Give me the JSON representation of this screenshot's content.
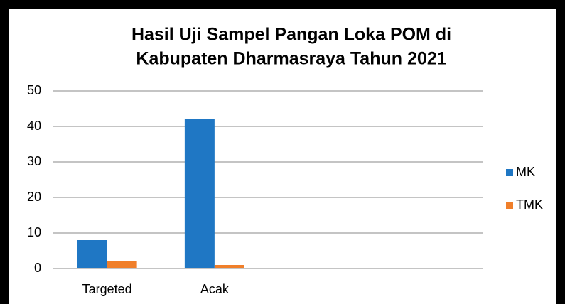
{
  "chart_data": {
    "type": "bar",
    "title": [
      "Hasil Uji Sampel Pangan Loka POM di",
      "Kabupaten Dharmasraya Tahun 2021"
    ],
    "categories": [
      "Targeted",
      "Acak",
      null,
      null
    ],
    "series": [
      {
        "name": "MK",
        "color": "#1f77c4",
        "values": [
          8,
          42,
          null,
          null
        ]
      },
      {
        "name": "TMK",
        "color": "#f07f2a",
        "values": [
          2,
          1,
          null,
          null
        ]
      }
    ],
    "ylim": [
      0,
      50
    ],
    "yticks": [
      0,
      10,
      20,
      30,
      40,
      50
    ],
    "grid": true,
    "legend": "right"
  }
}
